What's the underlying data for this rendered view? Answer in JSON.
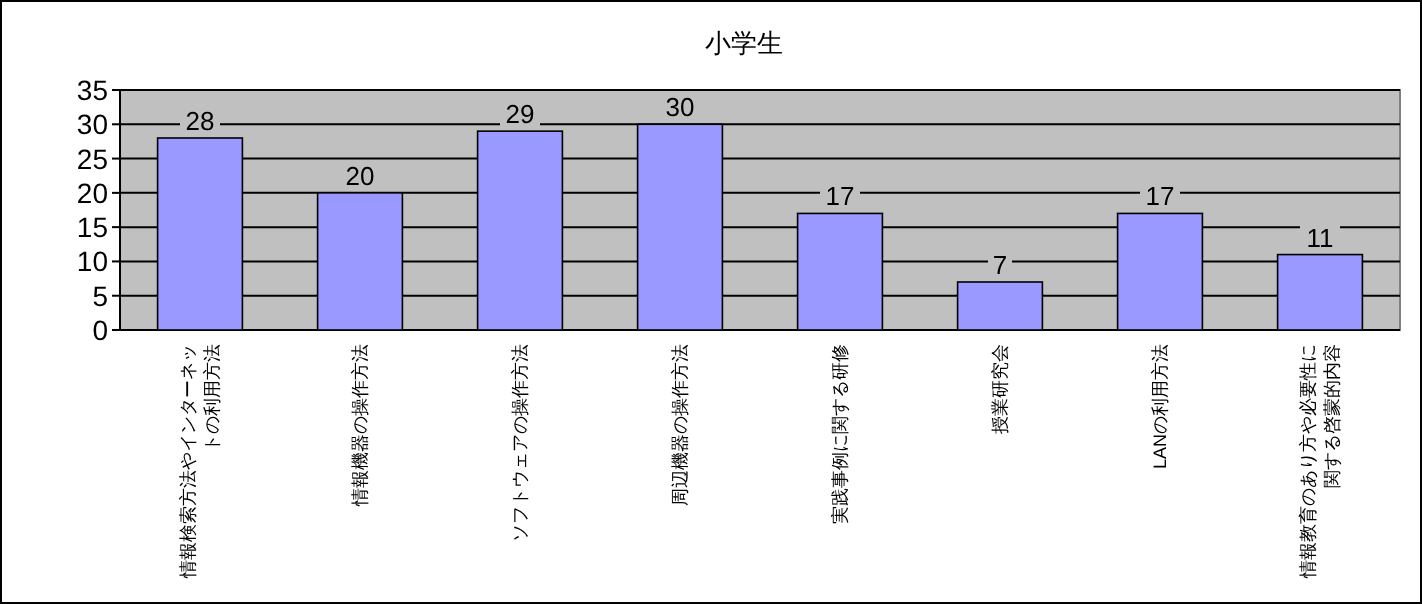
{
  "chart_data": {
    "type": "bar",
    "title": "小学生",
    "categories": [
      "情報検索方法やインターネットの利用方法",
      "情報機器の操作方法",
      "ソフトウェアの操作方法",
      "周辺機器の操作方法",
      "実践事例に関する研修",
      "授業研究会",
      "LANの利用方法",
      "情報教育のあり方や必要性に関する啓蒙的内容"
    ],
    "values": [
      28,
      20,
      29,
      30,
      17,
      7,
      17,
      11
    ],
    "color": "#9999ff",
    "ylim": [
      0,
      35
    ],
    "yticks": [
      0,
      5,
      10,
      15,
      20,
      25,
      30,
      35
    ],
    "grid": "y",
    "data_labels": true
  }
}
